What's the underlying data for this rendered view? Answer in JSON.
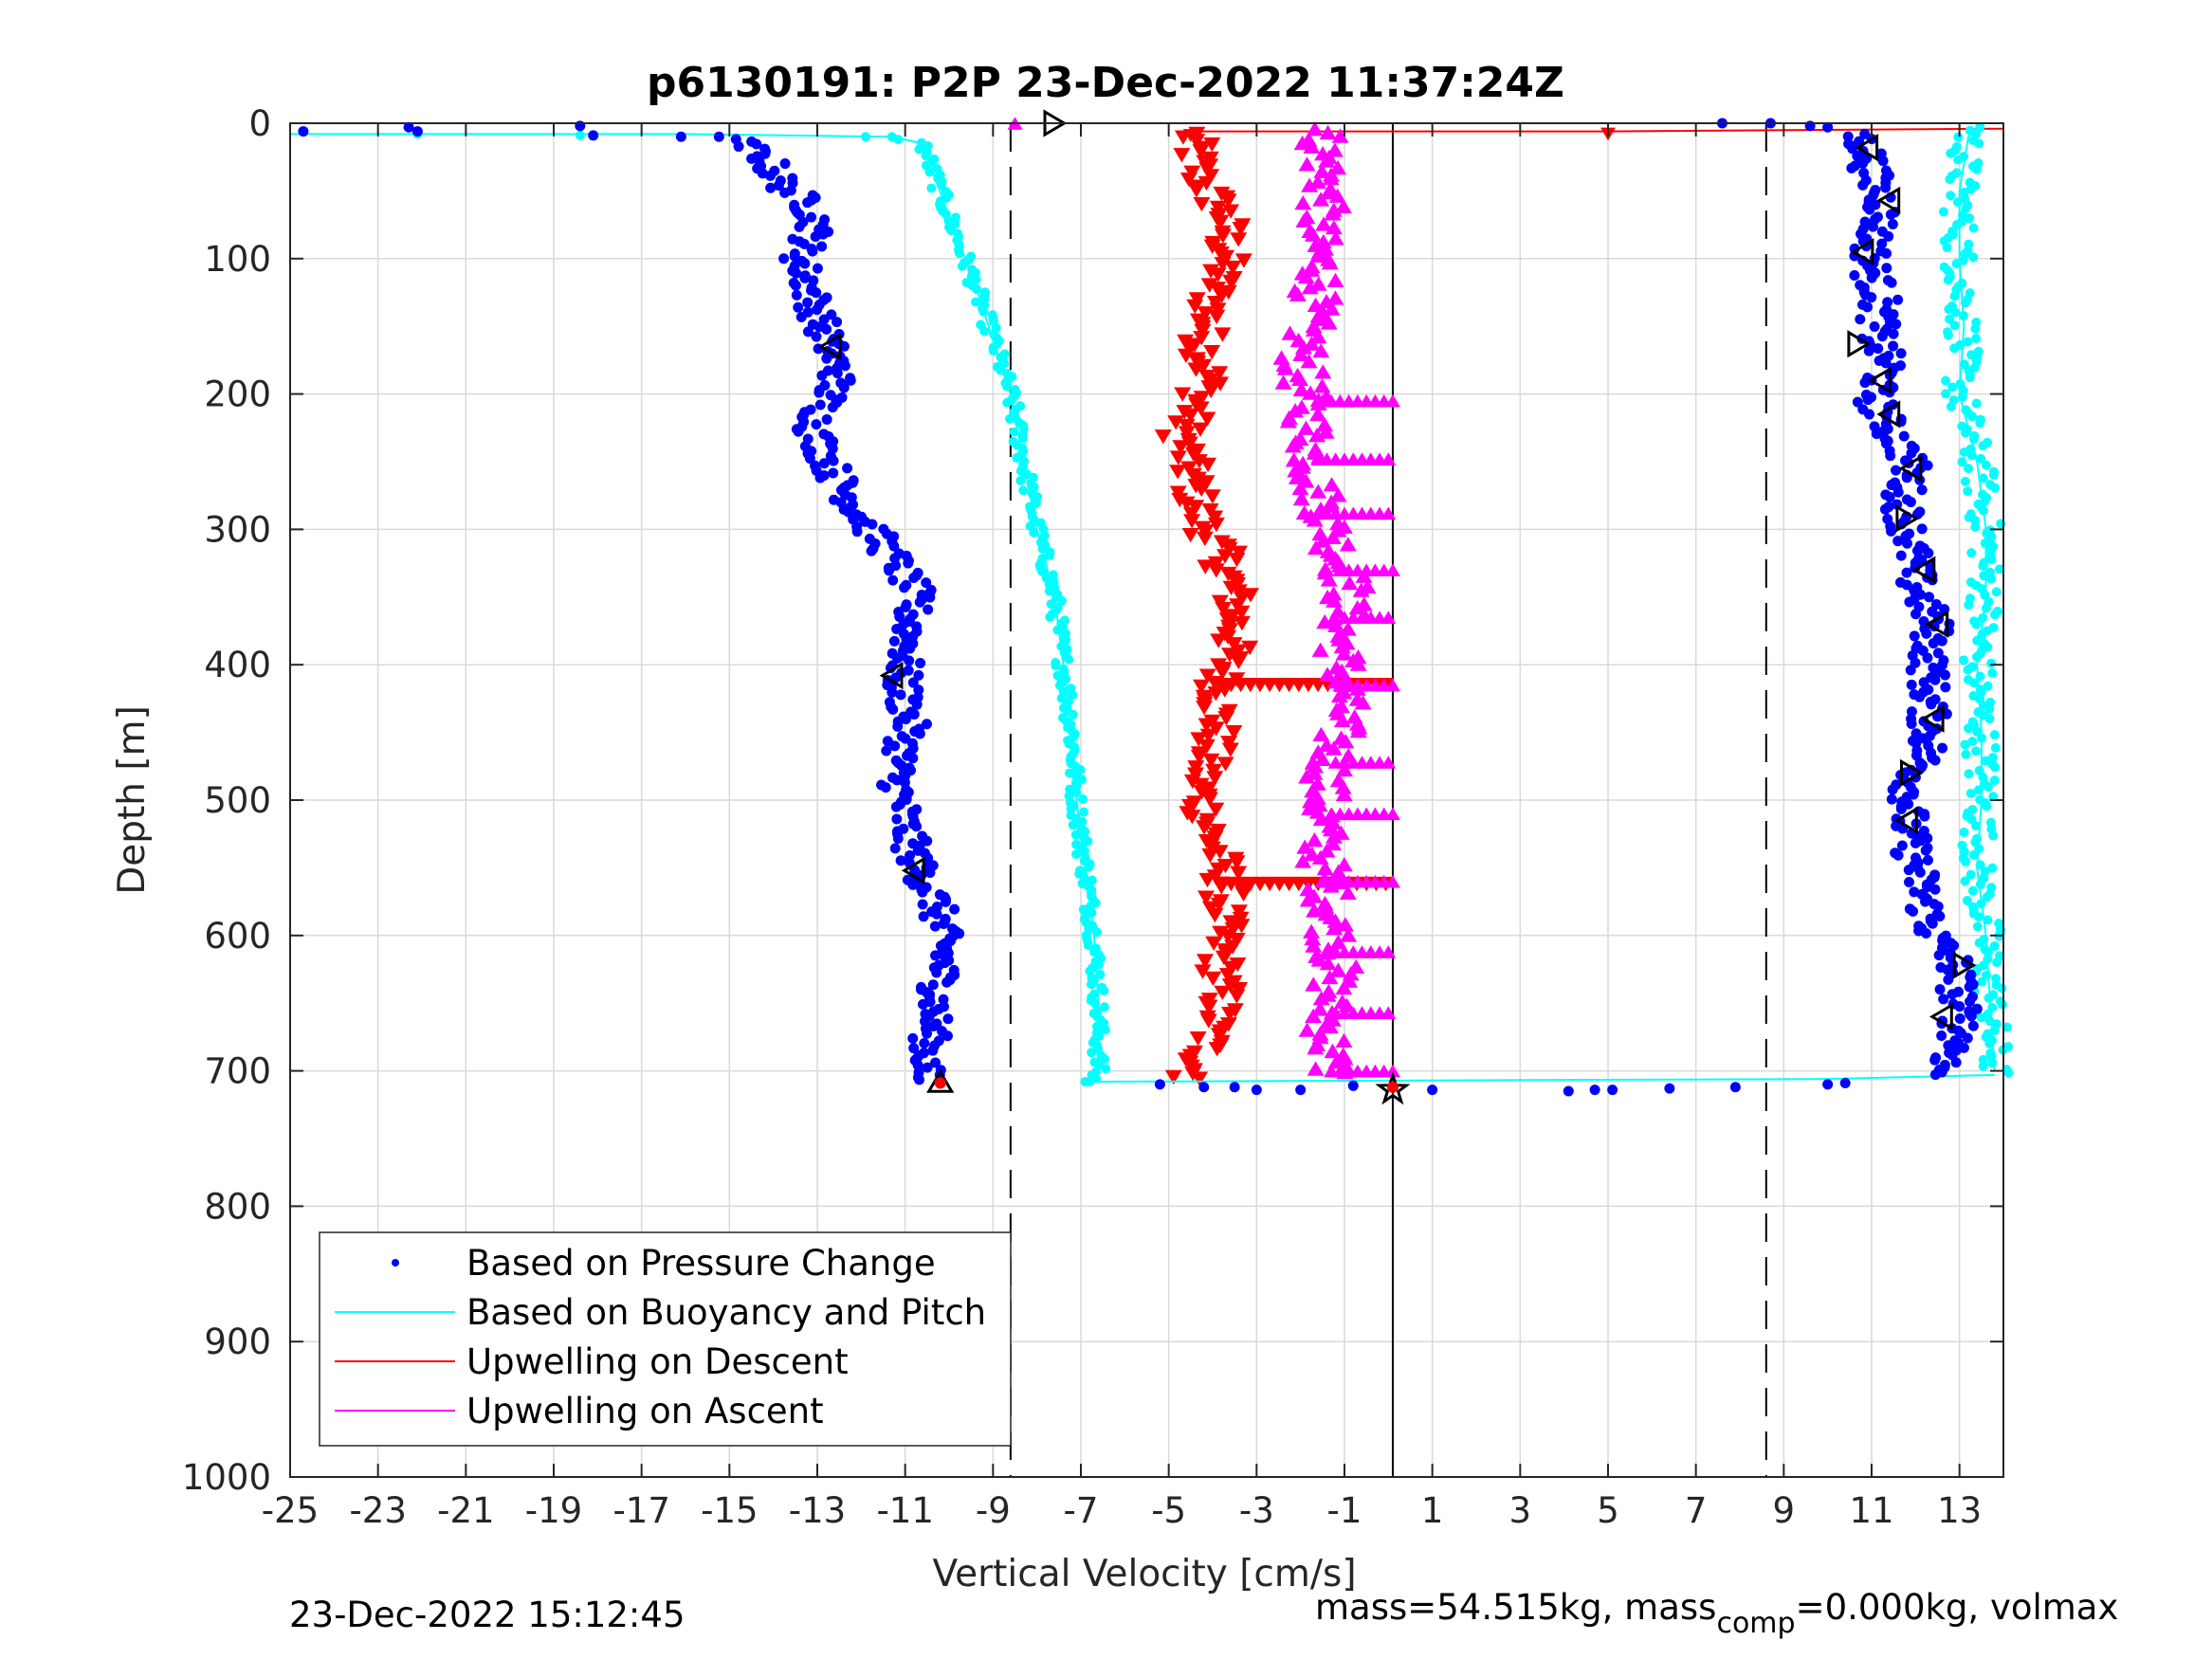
{
  "chart_data": {
    "type": "scatter",
    "title": "p6130191: P2P 23-Dec-2022 11:37:24Z",
    "xlabel": "Vertical Velocity [cm/s]",
    "ylabel": "Depth [m]",
    "xlim": [
      -25,
      14
    ],
    "ylim": [
      1000,
      0
    ],
    "y_reversed": true,
    "grid": true,
    "xticks": [
      "-25",
      "-23",
      "-21",
      "-19",
      "-17",
      "-15",
      "-13",
      "-11",
      "-9",
      "-7",
      "-5",
      "-3",
      "-1",
      "1",
      "3",
      "5",
      "7",
      "9",
      "11",
      "13"
    ],
    "yticks": [
      "0",
      "100",
      "200",
      "300",
      "400",
      "500",
      "600",
      "700",
      "800",
      "900",
      "1000"
    ],
    "legend_position": "bottom-left",
    "series": [
      {
        "name": "Based on Pressure Change",
        "color": "#0000ff",
        "marker": "dot",
        "descent": [
          [
            -14.9,
            12
          ],
          [
            -14.2,
            25
          ],
          [
            -13.8,
            45
          ],
          [
            -13.2,
            60
          ],
          [
            -13.0,
            75
          ],
          [
            -13.4,
            100
          ],
          [
            -13.1,
            130
          ],
          [
            -12.8,
            160
          ],
          [
            -12.5,
            185
          ],
          [
            -13.1,
            225
          ],
          [
            -12.6,
            260
          ],
          [
            -12.0,
            290
          ],
          [
            -11.3,
            320
          ],
          [
            -10.8,
            345
          ],
          [
            -10.9,
            380
          ],
          [
            -11.1,
            410
          ],
          [
            -10.9,
            445
          ],
          [
            -11.2,
            480
          ],
          [
            -11.0,
            520
          ],
          [
            -10.7,
            550
          ],
          [
            -10.3,
            575
          ],
          [
            -10.1,
            610
          ],
          [
            -10.3,
            650
          ],
          [
            -10.5,
            690
          ],
          [
            -10.6,
            708
          ]
        ],
        "ascent": [
          [
            12.6,
            700
          ],
          [
            13.0,
            680
          ],
          [
            13.0,
            650
          ],
          [
            12.9,
            620
          ],
          [
            12.4,
            600
          ],
          [
            12.1,
            560
          ],
          [
            11.8,
            520
          ],
          [
            11.9,
            490
          ],
          [
            12.3,
            460
          ],
          [
            12.3,
            430
          ],
          [
            12.3,
            400
          ],
          [
            12.4,
            370
          ],
          [
            12.0,
            340
          ],
          [
            11.9,
            310
          ],
          [
            11.7,
            280
          ],
          [
            11.9,
            250
          ],
          [
            11.3,
            220
          ],
          [
            11.0,
            200
          ],
          [
            11.4,
            180
          ],
          [
            11.1,
            160
          ],
          [
            11.2,
            130
          ],
          [
            11.0,
            110
          ],
          [
            11.0,
            90
          ],
          [
            11.3,
            60
          ],
          [
            11.0,
            40
          ],
          [
            10.9,
            20
          ],
          [
            10.7,
            10
          ]
        ],
        "surface_outliers": [
          [
            -24.7,
            6
          ],
          [
            -22.3,
            3
          ],
          [
            -22.1,
            6
          ],
          [
            -18.4,
            2
          ],
          [
            -18.1,
            9
          ],
          [
            -16.1,
            10
          ],
          [
            -5.2,
            710
          ],
          [
            -4.2,
            712
          ],
          [
            -3.5,
            712
          ],
          [
            -3.0,
            714
          ],
          [
            -2.0,
            714
          ],
          [
            -0.8,
            711
          ],
          [
            1.0,
            714
          ],
          [
            4.1,
            715
          ],
          [
            4.7,
            714
          ],
          [
            5.1,
            714
          ],
          [
            6.4,
            713
          ],
          [
            7.9,
            712
          ],
          [
            10.0,
            710
          ],
          [
            10.4,
            709
          ],
          [
            7.6,
            0
          ],
          [
            8.7,
            0
          ],
          [
            9.6,
            2
          ],
          [
            10.0,
            3
          ]
        ]
      },
      {
        "name": "Based on Buoyancy and Pitch",
        "color": "#00ffff",
        "marker": "dot-line",
        "descent": [
          [
            -25,
            8
          ],
          [
            -16,
            8
          ],
          [
            -11.3,
            10
          ],
          [
            -10.6,
            15
          ],
          [
            -10.1,
            60
          ],
          [
            -9.4,
            120
          ],
          [
            -9.0,
            160
          ],
          [
            -8.6,
            200
          ],
          [
            -8.3,
            250
          ],
          [
            -8.0,
            300
          ],
          [
            -7.6,
            350
          ],
          [
            -7.4,
            400
          ],
          [
            -7.2,
            450
          ],
          [
            -7.1,
            500
          ],
          [
            -6.9,
            550
          ],
          [
            -6.7,
            600
          ],
          [
            -6.6,
            650
          ],
          [
            -6.6,
            700
          ],
          [
            -6.8,
            708
          ]
        ],
        "bottom_transit": [
          [
            -6.8,
            708
          ],
          [
            10,
            706
          ],
          [
            13.8,
            703
          ]
        ],
        "ascent": [
          [
            13.8,
            700
          ],
          [
            13.7,
            650
          ],
          [
            13.6,
            600
          ],
          [
            13.4,
            550
          ],
          [
            13.5,
            500
          ],
          [
            13.5,
            450
          ],
          [
            13.4,
            400
          ],
          [
            13.6,
            350
          ],
          [
            13.6,
            300
          ],
          [
            13.4,
            250
          ],
          [
            13.0,
            200
          ],
          [
            13.1,
            150
          ],
          [
            13.0,
            100
          ],
          [
            13.0,
            50
          ],
          [
            13.2,
            10
          ],
          [
            13.4,
            3
          ]
        ]
      },
      {
        "name": "Upwelling on Descent",
        "color": "#ff0000",
        "marker": "triangle-down",
        "profile": [
          [
            -4.5,
            10
          ],
          [
            -4.3,
            40
          ],
          [
            -3.7,
            70
          ],
          [
            -3.7,
            100
          ],
          [
            -4.0,
            130
          ],
          [
            -4.2,
            160
          ],
          [
            -4.1,
            190
          ],
          [
            -4.7,
            230
          ],
          [
            -4.5,
            260
          ],
          [
            -4.3,
            290
          ],
          [
            -3.8,
            320
          ],
          [
            -3.5,
            350
          ],
          [
            -3.5,
            380
          ],
          [
            -3.8,
            410
          ],
          [
            -3.9,
            450
          ],
          [
            -4.3,
            490
          ],
          [
            -4.0,
            530
          ],
          [
            -3.7,
            560
          ],
          [
            -3.8,
            600
          ],
          [
            -3.8,
            650
          ],
          [
            -4.2,
            690
          ],
          [
            -4.5,
            705
          ]
        ],
        "bars": [
          [
            415,
            -3.8,
            0.1
          ],
          [
            562,
            -3.8,
            0.1
          ]
        ],
        "surface_line": [
          [
            -4.5,
            6
          ],
          [
            5,
            6
          ],
          [
            14,
            4
          ]
        ]
      },
      {
        "name": "Upwelling on Ascent",
        "color": "#ff00ff",
        "marker": "triangle-up",
        "profile": [
          [
            -1.3,
            700
          ],
          [
            -1.4,
            660
          ],
          [
            -1.2,
            620
          ],
          [
            -1.3,
            580
          ],
          [
            -1.5,
            540
          ],
          [
            -1.5,
            500
          ],
          [
            -1.2,
            460
          ],
          [
            -1.0,
            420
          ],
          [
            -1.1,
            380
          ],
          [
            -0.9,
            340
          ],
          [
            -1.3,
            300
          ],
          [
            -1.7,
            260
          ],
          [
            -1.8,
            220
          ],
          [
            -2.0,
            180
          ],
          [
            -1.8,
            140
          ],
          [
            -1.5,
            110
          ],
          [
            -1.7,
            80
          ],
          [
            -1.4,
            50
          ],
          [
            -1.5,
            20
          ],
          [
            -1.5,
            5
          ]
        ],
        "bars": [
          [
            205,
            -1.5,
            0.1
          ],
          [
            248,
            -1.6,
            0.1
          ],
          [
            288,
            -1.6,
            0.1
          ],
          [
            330,
            -1.1,
            0.1
          ],
          [
            365,
            -1.0,
            0.1
          ],
          [
            415,
            -1.1,
            0.1
          ],
          [
            472,
            -1.2,
            0.1
          ],
          [
            510,
            -1.3,
            0.1
          ],
          [
            560,
            -1.5,
            0.1
          ],
          [
            612,
            -1.2,
            0.1
          ],
          [
            657,
            -1.2,
            0.1
          ],
          [
            700,
            -1.3,
            0.1
          ]
        ],
        "surface_line": [
          [
            -8.5,
            0
          ],
          [
            -7.6,
            0
          ],
          [
            0.1,
            0
          ]
        ]
      }
    ],
    "reference_lines": [
      {
        "type": "vline",
        "x": -8.6,
        "style": "dashed",
        "color": "#000000"
      },
      {
        "type": "vline",
        "x": 8.6,
        "style": "dashed",
        "color": "#000000"
      },
      {
        "type": "vline",
        "x": 0.1,
        "style": "solid",
        "color": "#000000",
        "ylim": [
          0,
          1000
        ]
      }
    ],
    "annotation_markers": {
      "color": "#000000",
      "points": [
        {
          "x": -7.6,
          "y": 0,
          "shape": "triangle-right"
        },
        {
          "x": -12.7,
          "y": 165,
          "shape": "triangle-left"
        },
        {
          "x": -11.3,
          "y": 408,
          "shape": "triangle-left"
        },
        {
          "x": -10.8,
          "y": 552,
          "shape": "triangle-left"
        },
        {
          "x": -10.2,
          "y": 708,
          "shape": "triangle-up"
        },
        {
          "x": 0.1,
          "y": 714,
          "shape": "star"
        },
        {
          "x": 10.9,
          "y": 18,
          "shape": "triangle-left"
        },
        {
          "x": 11.4,
          "y": 57,
          "shape": "triangle-left"
        },
        {
          "x": 10.8,
          "y": 95,
          "shape": "triangle-left"
        },
        {
          "x": 10.7,
          "y": 163,
          "shape": "triangle-right"
        },
        {
          "x": 11.2,
          "y": 190,
          "shape": "triangle-left"
        },
        {
          "x": 11.4,
          "y": 215,
          "shape": "triangle-left"
        },
        {
          "x": 11.9,
          "y": 255,
          "shape": "triangle-left"
        },
        {
          "x": 11.8,
          "y": 292,
          "shape": "triangle-right"
        },
        {
          "x": 12.2,
          "y": 330,
          "shape": "triangle-left"
        },
        {
          "x": 12.5,
          "y": 370,
          "shape": "triangle-left"
        },
        {
          "x": 12.4,
          "y": 440,
          "shape": "triangle-left"
        },
        {
          "x": 11.9,
          "y": 480,
          "shape": "triangle-right"
        },
        {
          "x": 11.8,
          "y": 515,
          "shape": "triangle-left"
        },
        {
          "x": 13.1,
          "y": 622,
          "shape": "triangle-right"
        },
        {
          "x": 12.6,
          "y": 660,
          "shape": "triangle-left"
        }
      ]
    },
    "red_markers": [
      [
        -10.2,
        709
      ],
      [
        0.1,
        712
      ]
    ]
  },
  "footer": {
    "timestamp": "23-Dec-2022 15:12:45",
    "mass_text_part1": "mass=54.515kg, mass",
    "mass_text_sub": "comp",
    "mass_text_part2": "=0.000kg, volmax"
  }
}
